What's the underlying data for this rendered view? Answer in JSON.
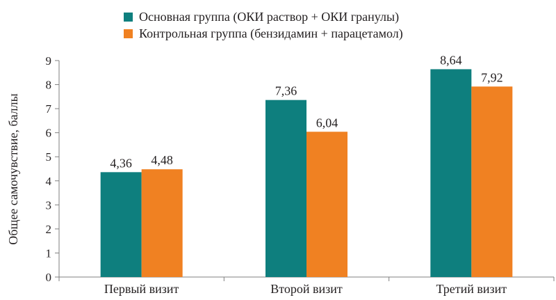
{
  "chart_data": {
    "type": "bar",
    "title": "",
    "xlabel": "",
    "ylabel": "Общее самочувствие, баллы",
    "categories": [
      "Первый визит",
      "Второй визит",
      "Третий визит"
    ],
    "series": [
      {
        "name": "Основная группа (ОКИ раствор + ОКИ гранулы)",
        "color": "#0e7f7e",
        "values": [
          4.36,
          7.36,
          8.64
        ],
        "labels": [
          "4,36",
          "7,36",
          "8,64"
        ]
      },
      {
        "name": "Контрольная группа (бензидамин + парацетамол)",
        "color": "#f08122",
        "values": [
          4.48,
          6.04,
          7.92
        ],
        "labels": [
          "4,48",
          "6,04",
          "7,92"
        ]
      }
    ],
    "ylim": [
      0,
      9
    ],
    "yticks": [
      "0",
      "1",
      "2",
      "3",
      "4",
      "5",
      "6",
      "7",
      "8",
      "9"
    ],
    "grid": false,
    "legend_position": "top"
  }
}
